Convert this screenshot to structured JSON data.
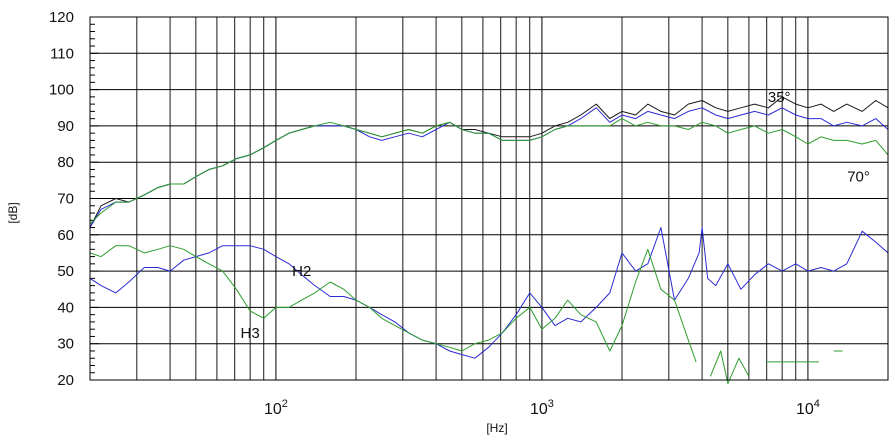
{
  "chart_data": {
    "type": "line",
    "title": "",
    "xlabel": "[Hz]",
    "ylabel": "[dB]",
    "x_scale": "log",
    "xlim": [
      20,
      20000
    ],
    "ylim": [
      20,
      120
    ],
    "grid": true,
    "y_ticks": [
      20,
      30,
      40,
      50,
      60,
      70,
      80,
      90,
      100,
      110,
      120
    ],
    "x_tick_labels": [
      {
        "value": 100,
        "base": "10",
        "exp": "2"
      },
      {
        "value": 1000,
        "base": "10",
        "exp": "3"
      },
      {
        "value": 10000,
        "base": "10",
        "exp": "4"
      }
    ],
    "colors": {
      "black": "#1a1a1a",
      "blue": "#2b2bd6",
      "green": "#2d9e2d"
    },
    "annotations": [
      {
        "text": "35°",
        "x": 7800,
        "y": 98
      },
      {
        "text": "70°",
        "x": 15500,
        "y": 76
      },
      {
        "text": "H2",
        "x": 125,
        "y": 50
      },
      {
        "text": "H3",
        "x": 80,
        "y": 33
      }
    ],
    "series": [
      {
        "color": "black",
        "x": [
          20,
          22,
          25,
          28,
          32,
          36,
          40,
          45,
          50,
          56,
          63,
          71,
          80,
          90,
          100,
          112,
          125,
          140,
          160,
          180,
          200,
          225,
          250,
          280,
          315,
          355,
          400,
          450,
          500,
          560,
          630,
          710,
          800,
          900,
          1000,
          1120,
          1250,
          1400,
          1600,
          1800,
          2000,
          2250,
          2500,
          2800,
          3150,
          3550,
          4000,
          4500,
          5000,
          5600,
          6300,
          7100,
          8000,
          9000,
          10000,
          11200,
          12500,
          14000,
          16000,
          18000,
          20000
        ],
        "y": [
          62,
          68,
          70,
          69,
          71,
          73,
          74,
          74,
          76,
          78,
          79,
          81,
          82,
          84,
          86,
          88,
          89,
          90,
          90,
          90,
          89,
          88,
          87,
          88,
          89,
          88,
          90,
          91,
          89,
          89,
          88,
          87,
          87,
          87,
          88,
          90,
          91,
          93,
          96,
          92,
          94,
          93,
          96,
          94,
          93,
          96,
          97,
          95,
          94,
          95,
          96,
          95,
          98,
          96,
          95,
          96,
          94,
          96,
          94,
          97,
          95
        ]
      },
      {
        "color": "blue",
        "x": [
          20,
          22,
          25,
          28,
          32,
          36,
          40,
          45,
          50,
          56,
          63,
          71,
          80,
          90,
          100,
          112,
          125,
          140,
          160,
          180,
          200,
          225,
          250,
          280,
          315,
          355,
          400,
          450,
          500,
          560,
          630,
          710,
          800,
          900,
          1000,
          1120,
          1250,
          1400,
          1600,
          1800,
          2000,
          2250,
          2500,
          2800,
          3150,
          3550,
          4000,
          4500,
          5000,
          5600,
          6300,
          7100,
          8000,
          9000,
          10000,
          11200,
          12500,
          14000,
          16000,
          18000,
          20000
        ],
        "y": [
          62,
          67,
          69,
          69,
          71,
          73,
          74,
          74,
          76,
          78,
          79,
          81,
          82,
          84,
          86,
          88,
          89,
          90,
          90,
          90,
          89,
          87,
          86,
          87,
          88,
          87,
          89,
          91,
          89,
          88,
          88,
          86,
          86,
          86,
          87,
          89,
          90,
          92,
          95,
          91,
          93,
          92,
          94,
          93,
          92,
          94,
          95,
          93,
          92,
          93,
          94,
          93,
          95,
          93,
          92,
          92,
          90,
          91,
          90,
          92,
          89
        ]
      },
      {
        "color": "green",
        "x": [
          20,
          22,
          25,
          28,
          32,
          36,
          40,
          45,
          50,
          56,
          63,
          71,
          80,
          90,
          100,
          112,
          125,
          140,
          160,
          180,
          200,
          225,
          250,
          280,
          315,
          355,
          400,
          450,
          500,
          560,
          630,
          710,
          800,
          900,
          1000,
          1120,
          1250,
          1400,
          1600,
          1800,
          2000,
          2250,
          2500,
          2800,
          3150,
          3550,
          4000,
          4500,
          5000,
          5600,
          6300,
          7100,
          8000,
          9000,
          10000,
          11200,
          12500,
          14000,
          16000,
          18000,
          20000
        ],
        "y": [
          63,
          66,
          69,
          69,
          71,
          73,
          74,
          74,
          76,
          78,
          79,
          81,
          82,
          84,
          86,
          88,
          89,
          90,
          91,
          90,
          89,
          88,
          87,
          88,
          89,
          88,
          90,
          91,
          89,
          88,
          88,
          86,
          86,
          86,
          87,
          89,
          90,
          90,
          90,
          90,
          92,
          90,
          91,
          90,
          90,
          89,
          91,
          90,
          88,
          89,
          90,
          88,
          89,
          87,
          85,
          87,
          86,
          86,
          85,
          86,
          82
        ]
      },
      {
        "name": "H2",
        "color": "blue",
        "x": [
          20,
          22,
          25,
          28,
          32,
          36,
          40,
          45,
          50,
          56,
          63,
          71,
          80,
          90,
          100,
          112,
          125,
          140,
          160,
          180,
          200,
          225,
          250,
          280,
          315,
          355,
          400,
          450,
          500,
          560,
          630,
          710,
          800,
          900,
          1000,
          1120,
          1250,
          1400,
          1600,
          1800,
          2000,
          2250,
          2500,
          2800,
          3150,
          3550,
          3900,
          4000,
          4200,
          4500,
          5000,
          5600,
          6300,
          7100,
          8000,
          9000,
          10000,
          11200,
          12500,
          14000,
          16000,
          18000,
          20000
        ],
        "y": [
          48,
          46,
          44,
          47,
          51,
          51,
          50,
          53,
          54,
          55,
          57,
          57,
          57,
          56,
          54,
          52,
          49,
          46,
          43,
          43,
          42,
          40,
          38,
          36,
          33,
          31,
          30,
          28,
          27,
          26,
          29,
          33,
          38,
          44,
          40,
          35,
          37,
          36,
          40,
          44,
          55,
          50,
          52,
          62,
          42,
          48,
          55,
          62,
          48,
          46,
          52,
          45,
          49,
          52,
          50,
          52,
          50,
          51,
          50,
          52,
          61,
          58,
          55
        ]
      },
      {
        "name": "H3",
        "color": "green",
        "x": [
          20,
          22,
          25,
          28,
          32,
          36,
          40,
          45,
          50,
          56,
          63,
          71,
          80,
          90,
          100,
          112,
          125,
          140,
          160,
          180,
          200,
          225,
          250,
          280,
          315,
          355,
          400,
          450,
          500,
          560,
          630,
          710,
          800,
          900,
          1000,
          1120,
          1250,
          1400,
          1600,
          1800,
          2000,
          2250,
          2500,
          2800,
          3150,
          3550,
          3800
        ],
        "y": [
          55,
          54,
          57,
          57,
          55,
          56,
          57,
          56,
          54,
          52,
          50,
          45,
          39,
          37,
          40,
          40,
          42,
          44,
          47,
          45,
          42,
          40,
          37,
          35,
          33,
          31,
          30,
          29,
          28,
          30,
          31,
          33,
          37,
          40,
          34,
          37,
          42,
          38,
          36,
          28,
          35,
          47,
          56,
          45,
          42,
          31,
          25
        ]
      },
      {
        "color": "green",
        "x": [
          4300,
          4700,
          5000,
          5500,
          6000
        ],
        "y": [
          21,
          28,
          19,
          26,
          21
        ]
      },
      {
        "color": "green",
        "x": [
          7000,
          8000,
          9000,
          10000,
          11000
        ],
        "y": [
          25,
          25,
          25,
          25,
          25
        ]
      },
      {
        "color": "green",
        "x": [
          12500,
          13500
        ],
        "y": [
          28,
          28
        ]
      }
    ]
  }
}
